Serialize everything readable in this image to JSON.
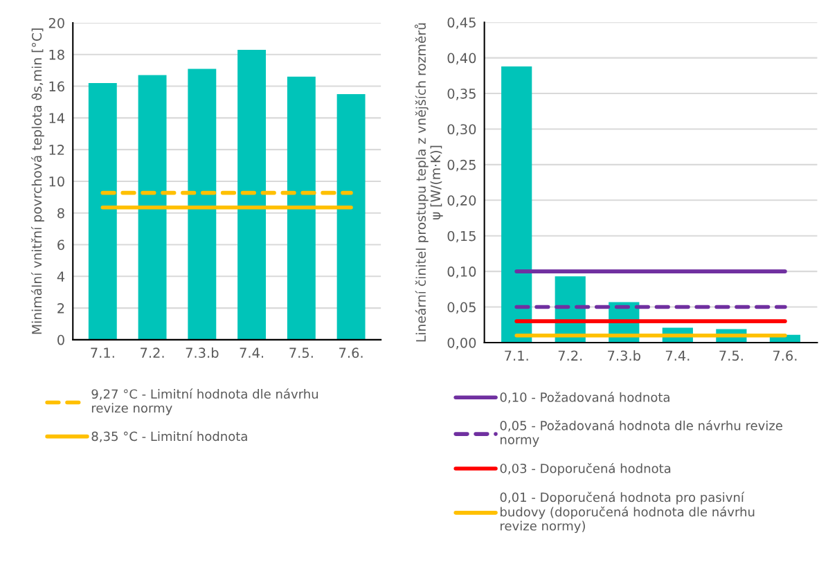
{
  "chart_data": [
    {
      "type": "bar",
      "ylabel": "Minimální vnitřní povrchová teplota ϑs,min [°C]",
      "categories": [
        "7.1.",
        "7.2.",
        "7.3.b",
        "7.4.",
        "7.5.",
        "7.6."
      ],
      "ylim": [
        0,
        20
      ],
      "yticks": [
        0,
        2,
        4,
        6,
        8,
        10,
        12,
        14,
        16,
        18,
        20
      ],
      "grid": "y",
      "legend": "bottom",
      "series": [
        {
          "color": "#00c4b9",
          "values": [
            16.2,
            16.7,
            17.1,
            18.3,
            16.6,
            15.5
          ]
        },
        {
          "type": "line",
          "name": "9,27 °C - Limitní hodnota dle návrhu\nrevize normy",
          "color": "#ffc000",
          "line_style": "dashed",
          "values": [
            9.27,
            9.27,
            9.27,
            9.27,
            9.27,
            9.27
          ]
        },
        {
          "type": "line",
          "name": "8,35 °C - Limitní hodnota",
          "color": "#ffc000",
          "line_style": "solid",
          "values": [
            8.35,
            8.35,
            8.35,
            8.35,
            8.35,
            8.35
          ]
        }
      ]
    },
    {
      "type": "bar",
      "ylabel": "Lineární činitel prostupu tepla z vnějších rozměrů\nψ [W/(m·K)]",
      "categories": [
        "7.1.",
        "7.2.",
        "7.3.b",
        "7.4.",
        "7.5.",
        "7.6."
      ],
      "ylim": [
        0,
        0.45
      ],
      "yticks": [
        {
          "value": 0,
          "label": "0,00"
        },
        {
          "value": 0.05,
          "label": "0,05"
        },
        {
          "value": 0.1,
          "label": "0,10"
        },
        {
          "value": 0.15,
          "label": "0,15"
        },
        {
          "value": 0.2,
          "label": "0,20"
        },
        {
          "value": 0.25,
          "label": "0,25"
        },
        {
          "value": 0.3,
          "label": "0,30"
        },
        {
          "value": 0.35,
          "label": "0,35"
        },
        {
          "value": 0.4,
          "label": "0,40"
        },
        {
          "value": 0.45,
          "label": "0,45"
        }
      ],
      "grid": "y",
      "legend": "bottom",
      "series": [
        {
          "color": "#00c4b9",
          "values": [
            0.388,
            0.093,
            0.057,
            0.021,
            0.019,
            0.011
          ]
        },
        {
          "type": "line",
          "name": "0,10 - Požadovaná hodnota",
          "color": "#7030a0",
          "line_style": "solid",
          "values": [
            0.1,
            0.1,
            0.1,
            0.1,
            0.1,
            0.1
          ]
        },
        {
          "type": "line",
          "name": "0,05 - Požadovaná hodnota dle návrhu revize\nnormy",
          "color": "#7030a0",
          "line_style": "dashed",
          "values": [
            0.05,
            0.05,
            0.05,
            0.05,
            0.05,
            0.05
          ]
        },
        {
          "type": "line",
          "name": "0,03 - Doporučená hodnota",
          "color": "#ff0000",
          "line_style": "solid",
          "values": [
            0.03,
            0.03,
            0.03,
            0.03,
            0.03,
            0.03
          ]
        },
        {
          "type": "line",
          "name": "0,01 - Doporučená hodnota pro pasivní\nbudovy (doporučená hodnota dle návrhu\nrevize normy)",
          "color": "#ffc000",
          "line_style": "solid",
          "values": [
            0.01,
            0.01,
            0.01,
            0.01,
            0.01,
            0.01
          ]
        }
      ]
    }
  ]
}
